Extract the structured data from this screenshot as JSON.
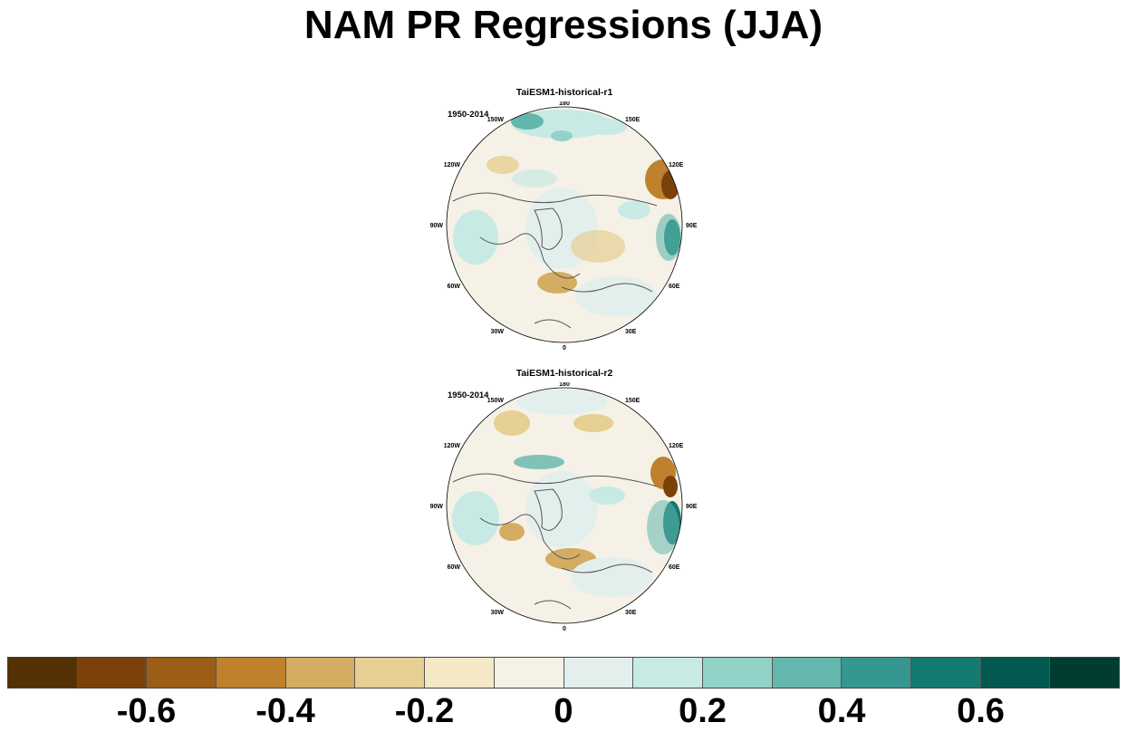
{
  "title": "NAM PR Regressions (JJA)",
  "panels": [
    {
      "name": "TaiESM1-historical-r1",
      "period": "1950-2014"
    },
    {
      "name": "TaiESM1-historical-r2",
      "period": "1950-2014"
    }
  ],
  "longitude_labels": [
    "180",
    "150E",
    "120E",
    "90E",
    "60E",
    "30E",
    "0",
    "30W",
    "60W",
    "90W",
    "120W",
    "150W"
  ],
  "colorbar": {
    "colors": [
      "#543005",
      "#7a420a",
      "#9c5d17",
      "#bf812d",
      "#d4ad62",
      "#e6cf92",
      "#f5e8c4",
      "#f5f1e6",
      "#e3efed",
      "#c7eae4",
      "#92d2c8",
      "#63b7ad",
      "#35978f",
      "#137a70",
      "#01594f",
      "#003c30"
    ],
    "labels": [
      "-0.6",
      "-0.4",
      "-0.2",
      "0",
      "0.2",
      "0.4",
      "0.6"
    ]
  }
}
